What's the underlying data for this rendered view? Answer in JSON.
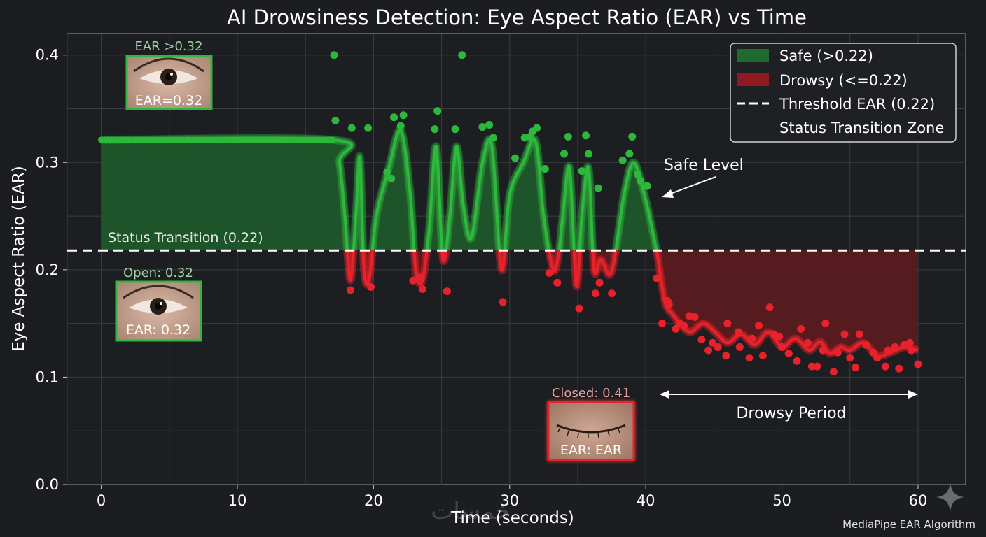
{
  "chart_data": {
    "type": "line",
    "title": "AI Drowsiness Detection: Eye Aspect Ratio (EAR) vs Time",
    "xlabel": "Time (seconds)",
    "ylabel": "Eye Aspect Ratio (EAR)",
    "xlim": [
      -2.5,
      63.5
    ],
    "ylim": [
      0,
      0.42
    ],
    "xticks": [
      0,
      10,
      20,
      30,
      40,
      50,
      60
    ],
    "xtick_labels": [
      "0",
      "10",
      "20",
      "30",
      "40",
      "50",
      "60"
    ],
    "yticks": [
      0.0,
      0.1,
      0.2,
      0.3,
      0.4
    ],
    "ytick_labels": [
      "0.0",
      "0.1",
      "0.2",
      "0.3",
      "0.4"
    ],
    "grid": true,
    "threshold": 0.218,
    "threshold_label": "Status Transition (0.22)",
    "legend": {
      "position": "top-right",
      "entries": [
        "Safe (>0.22)",
        "Drowsy (<=0.22)",
        "Threshold EAR (0.22)",
        "Status Transition Zone"
      ]
    },
    "series": [
      {
        "name": "EAR",
        "x": [
          0,
          17,
          17.5,
          17.9,
          18.3,
          18.7,
          19.0,
          19.3,
          19.7,
          20.2,
          21.1,
          22.0,
          22.7,
          23.1,
          23.6,
          24.1,
          24.6,
          25.1,
          25.6,
          26.1,
          26.6,
          27.2,
          28.0,
          28.7,
          29.4,
          30.0,
          31.0,
          31.9,
          32.5,
          33.2,
          33.6,
          33.9,
          34.4,
          34.9,
          35.3,
          35.8,
          36.2,
          36.7,
          37.3,
          37.7,
          38.4,
          39.1,
          39.9,
          40.6,
          40.9,
          41.4,
          42.0,
          42.6,
          43.3,
          44.2,
          45.0,
          46.0,
          47.0,
          48.0,
          49.0,
          50.0,
          51.0,
          52.0,
          52.8,
          53.5,
          54.3,
          55.0,
          56.0,
          57.0,
          58.0,
          59.0,
          60.0
        ],
        "y": [
          0.321,
          0.321,
          0.3,
          0.25,
          0.19,
          0.25,
          0.305,
          0.2,
          0.193,
          0.25,
          0.294,
          0.33,
          0.27,
          0.2,
          0.19,
          0.24,
          0.315,
          0.21,
          0.25,
          0.315,
          0.26,
          0.23,
          0.3,
          0.315,
          0.2,
          0.27,
          0.3,
          0.32,
          0.25,
          0.2,
          0.215,
          0.25,
          0.295,
          0.185,
          0.25,
          0.295,
          0.2,
          0.21,
          0.195,
          0.21,
          0.27,
          0.3,
          0.27,
          0.23,
          0.21,
          0.17,
          0.158,
          0.148,
          0.142,
          0.15,
          0.143,
          0.132,
          0.14,
          0.13,
          0.142,
          0.128,
          0.136,
          0.125,
          0.133,
          0.122,
          0.128,
          0.125,
          0.132,
          0.12,
          0.123,
          0.128,
          0.125
        ]
      },
      {
        "name": "safe_points",
        "x": [
          17.1,
          17.2,
          18.4,
          19.6,
          21.0,
          21.3,
          21.5,
          22.0,
          22.2,
          24.5,
          24.7,
          26.0,
          26.5,
          28.0,
          28.5,
          28.8,
          30.4,
          31.1,
          31.5,
          31.7,
          32.0,
          32.6,
          34.0,
          34.3,
          35.3,
          35.6,
          35.8,
          36.5,
          38.3,
          38.8,
          39.0,
          39.4,
          39.6,
          40.1
        ],
        "y": [
          0.4,
          0.339,
          0.332,
          0.332,
          0.291,
          0.285,
          0.342,
          0.334,
          0.344,
          0.331,
          0.348,
          0.331,
          0.4,
          0.333,
          0.335,
          0.323,
          0.304,
          0.323,
          0.324,
          0.329,
          0.332,
          0.294,
          0.308,
          0.324,
          0.292,
          0.325,
          0.308,
          0.276,
          0.302,
          0.308,
          0.324,
          0.289,
          0.283,
          0.278
        ]
      },
      {
        "name": "drowsy_points",
        "x": [
          18.3,
          19.8,
          22.9,
          23.5,
          23.6,
          25.4,
          29.5,
          32.9,
          33.5,
          35.1,
          36.3,
          36.6,
          37.5,
          41.2,
          41.7,
          42.2,
          42.5,
          43.2,
          44.1,
          44.6,
          45.3,
          46.0,
          46.9,
          47.8,
          48.6,
          49.4,
          50.0,
          51.1,
          51.9,
          52.6,
          53.2,
          54.1,
          55.0,
          55.7,
          56.7,
          57.6,
          58.3,
          59.0,
          59.5,
          60.0,
          40.8,
          41.6,
          42.8,
          43.6,
          44.9,
          45.9,
          46.8,
          47.6,
          48.3,
          49.1,
          49.8,
          50.5,
          51.4,
          52.2,
          53.0,
          53.8,
          54.6,
          55.4,
          56.2,
          57.0,
          57.8,
          58.6,
          59.4
        ],
        "y": [
          0.181,
          0.184,
          0.19,
          0.193,
          0.182,
          0.18,
          0.17,
          0.197,
          0.188,
          0.164,
          0.178,
          0.188,
          0.178,
          0.15,
          0.168,
          0.145,
          0.15,
          0.157,
          0.135,
          0.125,
          0.128,
          0.15,
          0.128,
          0.136,
          0.12,
          0.14,
          0.128,
          0.115,
          0.132,
          0.11,
          0.15,
          0.123,
          0.118,
          0.14,
          0.123,
          0.11,
          0.128,
          0.13,
          0.125,
          0.112,
          0.192,
          0.171,
          0.148,
          0.156,
          0.132,
          0.12,
          0.142,
          0.118,
          0.148,
          0.165,
          0.138,
          0.122,
          0.145,
          0.11,
          0.125,
          0.105,
          0.14,
          0.109,
          0.13,
          0.118,
          0.125,
          0.108,
          0.132
        ]
      }
    ],
    "annotations": {
      "safe_level": "Safe Level",
      "drowsy_period": "Drowsy Period",
      "drowsy_period_range": [
        41,
        60
      ],
      "open_eye_1_title": "EAR >0.32",
      "open_eye_1_label": "EAR=0.32",
      "open_eye_2_title": "Open: 0.32",
      "open_eye_2_label": "EAR: 0.32",
      "closed_eye_title": "Closed: 0.41",
      "closed_eye_label": "EAR: EAR"
    },
    "colors": {
      "background": "#1b1d21",
      "plot_background": "#1c1e22",
      "safe": "#2db83d",
      "safe_fill": "#1f5a2a",
      "drowsy": "#e8212b",
      "drowsy_fill": "#5d1b1e",
      "threshold": "#ffffff"
    }
  },
  "footer": {
    "credit": "MediaPipe EAR Algorithm",
    "watermark": "خمسات"
  }
}
